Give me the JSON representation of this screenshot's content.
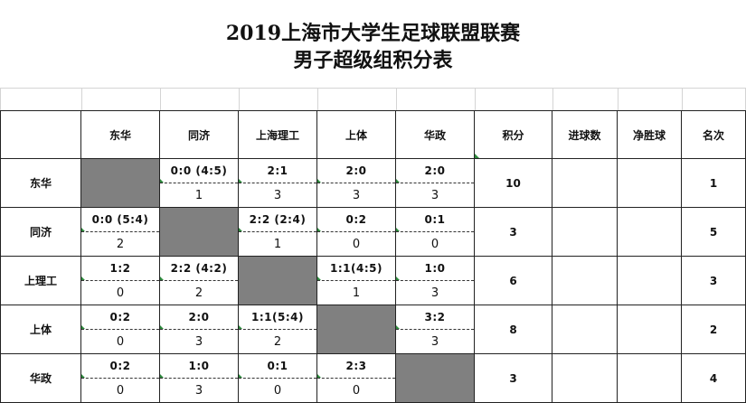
{
  "title": {
    "line1": "2019上海市大学生足球联盟联赛",
    "line2": "男子超级组积分表"
  },
  "headers": [
    "",
    "东华",
    "同济",
    "上海理工",
    "上体",
    "华政",
    "积分",
    "进球数",
    "净胜球",
    "名次"
  ],
  "rows": [
    {
      "team": "东华",
      "matches": [
        null,
        {
          "score": "0:0 (4:5)",
          "points": "1"
        },
        {
          "score": "2:1",
          "points": "3"
        },
        {
          "score": "2:0",
          "points": "3"
        },
        {
          "score": "2:0",
          "points": "3"
        }
      ],
      "total": "10",
      "goals": "",
      "gd": "",
      "rank": "1"
    },
    {
      "team": "同济",
      "matches": [
        {
          "score": "0:0 (5:4)",
          "points": "2"
        },
        null,
        {
          "score": "2:2 (2:4)",
          "points": "1"
        },
        {
          "score": "0:2",
          "points": "0"
        },
        {
          "score": "0:1",
          "points": "0"
        }
      ],
      "total": "3",
      "goals": "",
      "gd": "",
      "rank": "5"
    },
    {
      "team": "上理工",
      "matches": [
        {
          "score": "1:2",
          "points": "0"
        },
        {
          "score": "2:2 (4:2)",
          "points": "2"
        },
        null,
        {
          "score": "1:1(4:5)",
          "points": "1"
        },
        {
          "score": "1:0",
          "points": "3"
        }
      ],
      "total": "6",
      "goals": "",
      "gd": "",
      "rank": "3"
    },
    {
      "team": "上体",
      "matches": [
        {
          "score": "0:2",
          "points": "0"
        },
        {
          "score": "2:0",
          "points": "3"
        },
        {
          "score": "1:1(5:4)",
          "points": "2"
        },
        null,
        {
          "score": "3:2",
          "points": "3"
        }
      ],
      "total": "8",
      "goals": "",
      "gd": "",
      "rank": "2"
    },
    {
      "team": "华政",
      "matches": [
        {
          "score": "0:2",
          "points": "0"
        },
        {
          "score": "1:0",
          "points": "3"
        },
        {
          "score": "0:1",
          "points": "0"
        },
        {
          "score": "2:3",
          "points": "0"
        },
        null
      ],
      "total": "3",
      "goals": "",
      "gd": "",
      "rank": "4"
    }
  ]
}
